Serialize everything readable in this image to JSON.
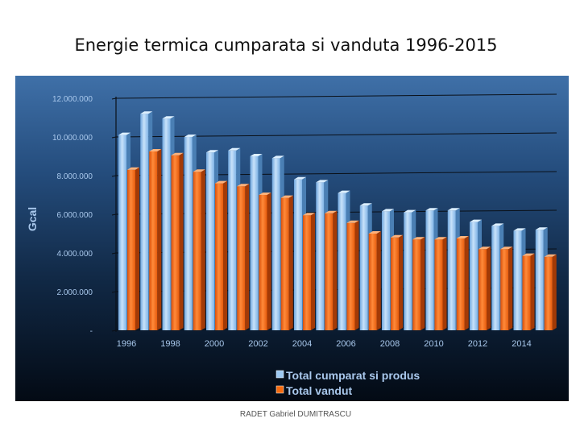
{
  "slide": {
    "title": "Energie termica cumparata si vanduta 1996-2015",
    "footer": "RADET   Gabriel DUMITRASCU"
  },
  "chart_data": {
    "type": "bar",
    "title": "Energie termica cumparata si vanduta 1996-2015",
    "ylabel": "Gcal",
    "xlabel": "",
    "ylim": [
      0,
      12000000
    ],
    "y_ticks": [
      0,
      2000000,
      4000000,
      6000000,
      8000000,
      10000000,
      12000000
    ],
    "y_tick_labels": [
      "-",
      "2.000.000",
      "4.000.000",
      "6.000.000",
      "8.000.000",
      "10.000.000",
      "12.000.000"
    ],
    "categories": [
      "1996",
      "1997",
      "1998",
      "1999",
      "2000",
      "2001",
      "2002",
      "2003",
      "2004",
      "2005",
      "2006",
      "2007",
      "2008",
      "2009",
      "2010",
      "2011",
      "2012",
      "2013",
      "2014",
      "2015"
    ],
    "x_tick_labels": [
      "1996",
      "1998",
      "2000",
      "2002",
      "2004",
      "2006",
      "2008",
      "2010",
      "2012",
      "2014"
    ],
    "x_tick_label_categories": [
      "1996",
      "1998",
      "2000",
      "2002",
      "2004",
      "2006",
      "2008",
      "2010",
      "2012",
      "2014"
    ],
    "series": [
      {
        "name": "Total cumparat si produs",
        "color": "#9cc9f2",
        "values": [
          10100000,
          11200000,
          10950000,
          10000000,
          9200000,
          9300000,
          9000000,
          8900000,
          7800000,
          7650000,
          7100000,
          6450000,
          6150000,
          6100000,
          6200000,
          6200000,
          5600000,
          5400000,
          5150000,
          5200000
        ]
      },
      {
        "name": "Total vandut",
        "color": "#f56a0f",
        "values": [
          8300000,
          9250000,
          9050000,
          8200000,
          7600000,
          7450000,
          7000000,
          6850000,
          5950000,
          6050000,
          5550000,
          5000000,
          4800000,
          4700000,
          4700000,
          4750000,
          4200000,
          4200000,
          3850000,
          3800000
        ]
      }
    ],
    "grid": true,
    "legend_position": "bottom"
  }
}
